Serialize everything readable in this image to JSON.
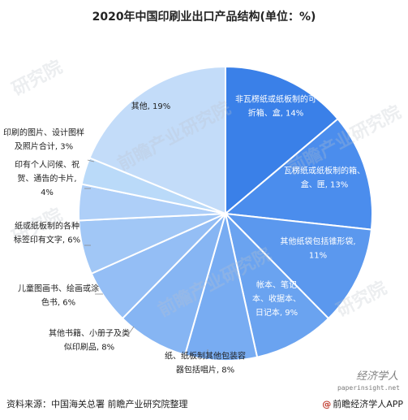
{
  "title": "2020年中国印刷业出口产品结构(单位：%)",
  "chart_data": {
    "type": "pie",
    "title": "2020年中国印刷业出口产品结构(单位：%)",
    "start_angle_deg": 0,
    "direction": "clockwise",
    "slices": [
      {
        "lines": [
          "非瓦楞纸或纸板制的可",
          "折箱、盒, 14%"
        ],
        "value": 14,
        "color": "#3a80e8",
        "label_inside": true
      },
      {
        "lines": [
          "瓦楞纸或纸板制的箱、",
          "盒、匣, 13%"
        ],
        "value": 13,
        "color": "#4b8ded",
        "label_inside": true
      },
      {
        "lines": [
          "其他纸袋包括锥形袋,",
          "11%"
        ],
        "value": 11,
        "color": "#5b98ee",
        "label_inside": true
      },
      {
        "lines": [
          "帐本、笔记",
          "本、收据本、",
          "日记本, 9%"
        ],
        "value": 9,
        "color": "#6aa3f0",
        "label_inside": true
      },
      {
        "lines": [
          "纸、纸板制其他包装容",
          "器包括唱片, 8%"
        ],
        "value": 8,
        "color": "#78acf2",
        "label_inside": false
      },
      {
        "lines": [
          "其他书籍、小册子及类",
          "似印刷品, 8%"
        ],
        "value": 8,
        "color": "#86b5f3",
        "label_inside": false
      },
      {
        "lines": [
          "儿童图画书、绘画或涂",
          "色书, 6%"
        ],
        "value": 6,
        "color": "#94bef5",
        "label_inside": false
      },
      {
        "lines": [
          "纸或纸板制的各种",
          "标签印有文字, 6%"
        ],
        "value": 6,
        "color": "#a1c7f6",
        "label_inside": false
      },
      {
        "lines": [
          "印有个人问候、祝",
          "贺、通告的卡片,",
          "4%"
        ],
        "value": 4,
        "color": "#aecff8",
        "label_inside": false
      },
      {
        "lines": [
          "印刷的图片、设计图样",
          "及照片合计, 3%"
        ],
        "value": 3,
        "color": "#badaf9",
        "label_inside": false
      },
      {
        "lines": [
          "其他, 19%"
        ],
        "value": 19,
        "color": "#c3dcf9",
        "label_inside": false
      }
    ]
  },
  "footer": {
    "source": "资料来源：中国海关总署 前瞻产业研究院整理",
    "brand": "前瞻经济学人APP",
    "brand_icon": "at-icon",
    "signature": "经济学人",
    "url": "paperinsight.net"
  },
  "watermarks": [
    "研究院",
    "前瞻产业研究院"
  ]
}
